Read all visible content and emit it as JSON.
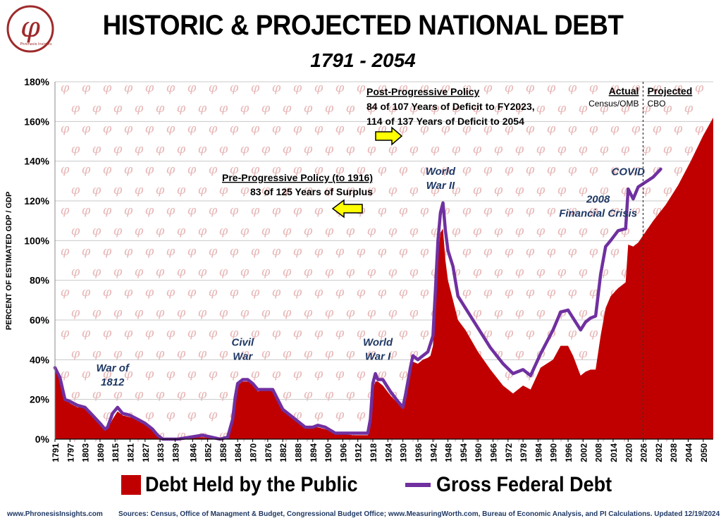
{
  "header": {
    "title": "HISTORIC & PROJECTED NATIONAL DEBT",
    "subtitle": "1791 - 2054",
    "logo_text": "Phronesis Insights",
    "logo_glyph": "φ"
  },
  "colors": {
    "public_debt": "#c00000",
    "gross_debt": "#7030a0",
    "annotation_text": "#1f3864",
    "arrow_fill": "#ffff00",
    "watermark": "#e8b8b8"
  },
  "footer": {
    "left": "www.PhronesisInsights.com",
    "right": "Sources: Census, Office of Managment & Budget, Congressional Budget Office; www.MeasuringWorth.com, Bureau of Economic Analysis, and PI Calculations. Updated 12/19/2024"
  },
  "chart_data": {
    "type": "area",
    "title": "HISTORIC & PROJECTED NATIONAL DEBT",
    "subtitle": "1791 - 2054",
    "ylabel": "PERCENT OF ESTIMATED GDP / GDP",
    "xlabel": "",
    "xlim": [
      1791,
      2054
    ],
    "ylim": [
      0,
      180
    ],
    "yticks": [
      "0%",
      "20%",
      "40%",
      "60%",
      "80%",
      "100%",
      "120%",
      "140%",
      "160%",
      "180%"
    ],
    "xticks": [
      "1791",
      "1797",
      "1803",
      "1809",
      "1815",
      "1821",
      "1827",
      "1833",
      "1839",
      "1846",
      "1852",
      "1858",
      "1864",
      "1870",
      "1876",
      "1882",
      "1888",
      "1894",
      "1900",
      "1906",
      "1912",
      "1918",
      "1924",
      "1930",
      "1936",
      "1942",
      "1948",
      "1954",
      "1960",
      "1966",
      "1972",
      "1978",
      "1984",
      "1990",
      "1996",
      "2002",
      "2008",
      "2014",
      "2020",
      "2026",
      "2032",
      "2038",
      "2044",
      "2050"
    ],
    "grid": true,
    "legend_position": "bottom",
    "series": [
      {
        "name": "Debt Held by the Public",
        "style": "area",
        "points": [
          [
            1791,
            35
          ],
          [
            1793,
            30
          ],
          [
            1795,
            21
          ],
          [
            1797,
            18
          ],
          [
            1800,
            16
          ],
          [
            1803,
            16
          ],
          [
            1806,
            12
          ],
          [
            1809,
            8
          ],
          [
            1811,
            5
          ],
          [
            1812,
            5
          ],
          [
            1814,
            10
          ],
          [
            1816,
            14
          ],
          [
            1818,
            12
          ],
          [
            1821,
            11
          ],
          [
            1824,
            10
          ],
          [
            1827,
            8
          ],
          [
            1830,
            5
          ],
          [
            1832,
            2
          ],
          [
            1834,
            0
          ],
          [
            1836,
            0
          ],
          [
            1840,
            0
          ],
          [
            1845,
            1
          ],
          [
            1850,
            1
          ],
          [
            1857,
            0
          ],
          [
            1860,
            1
          ],
          [
            1862,
            10
          ],
          [
            1863,
            20
          ],
          [
            1864,
            27
          ],
          [
            1866,
            29
          ],
          [
            1868,
            29
          ],
          [
            1870,
            28
          ],
          [
            1872,
            24
          ],
          [
            1875,
            25
          ],
          [
            1878,
            24
          ],
          [
            1880,
            19
          ],
          [
            1882,
            14
          ],
          [
            1885,
            12
          ],
          [
            1888,
            9
          ],
          [
            1891,
            6
          ],
          [
            1894,
            6
          ],
          [
            1896,
            6
          ],
          [
            1899,
            5
          ],
          [
            1903,
            3
          ],
          [
            1910,
            2
          ],
          [
            1916,
            2
          ],
          [
            1917,
            8
          ],
          [
            1918,
            25
          ],
          [
            1919,
            29
          ],
          [
            1920,
            29
          ],
          [
            1922,
            27
          ],
          [
            1925,
            22
          ],
          [
            1928,
            18
          ],
          [
            1930,
            16
          ],
          [
            1931,
            20
          ],
          [
            1933,
            32
          ],
          [
            1934,
            39
          ],
          [
            1936,
            38
          ],
          [
            1938,
            40
          ],
          [
            1940,
            41
          ],
          [
            1941,
            42
          ],
          [
            1942,
            47
          ],
          [
            1943,
            70
          ],
          [
            1944,
            92
          ],
          [
            1945,
            104
          ],
          [
            1946,
            106
          ],
          [
            1947,
            90
          ],
          [
            1948,
            80
          ],
          [
            1950,
            70
          ],
          [
            1952,
            60
          ],
          [
            1955,
            55
          ],
          [
            1960,
            44
          ],
          [
            1965,
            35
          ],
          [
            1970,
            27
          ],
          [
            1974,
            23
          ],
          [
            1978,
            27
          ],
          [
            1981,
            25
          ],
          [
            1985,
            36
          ],
          [
            1990,
            40
          ],
          [
            1993,
            47
          ],
          [
            1996,
            47
          ],
          [
            1998,
            42
          ],
          [
            2001,
            32
          ],
          [
            2003,
            34
          ],
          [
            2005,
            35
          ],
          [
            2007,
            35
          ],
          [
            2009,
            52
          ],
          [
            2011,
            66
          ],
          [
            2013,
            72
          ],
          [
            2016,
            76
          ],
          [
            2019,
            79
          ],
          [
            2020,
            98
          ],
          [
            2022,
            97
          ],
          [
            2024,
            99
          ],
          [
            2030,
            110
          ],
          [
            2035,
            118
          ],
          [
            2040,
            128
          ],
          [
            2045,
            140
          ],
          [
            2050,
            153
          ],
          [
            2054,
            162
          ]
        ]
      },
      {
        "name": "Gross Federal Debt",
        "style": "line",
        "points": [
          [
            1791,
            36
          ],
          [
            1793,
            31
          ],
          [
            1795,
            20
          ],
          [
            1797,
            19
          ],
          [
            1800,
            17
          ],
          [
            1803,
            16
          ],
          [
            1806,
            12
          ],
          [
            1809,
            8
          ],
          [
            1811,
            5
          ],
          [
            1812,
            6
          ],
          [
            1814,
            13
          ],
          [
            1816,
            16
          ],
          [
            1818,
            13
          ],
          [
            1821,
            12
          ],
          [
            1824,
            10
          ],
          [
            1827,
            8
          ],
          [
            1830,
            5
          ],
          [
            1832,
            2
          ],
          [
            1834,
            0
          ],
          [
            1836,
            0
          ],
          [
            1840,
            0
          ],
          [
            1845,
            1
          ],
          [
            1850,
            2
          ],
          [
            1857,
            0
          ],
          [
            1860,
            1
          ],
          [
            1862,
            10
          ],
          [
            1863,
            21
          ],
          [
            1864,
            28
          ],
          [
            1866,
            30
          ],
          [
            1868,
            30
          ],
          [
            1870,
            28
          ],
          [
            1872,
            25
          ],
          [
            1875,
            25
          ],
          [
            1878,
            25
          ],
          [
            1880,
            20
          ],
          [
            1882,
            15
          ],
          [
            1885,
            12
          ],
          [
            1888,
            9
          ],
          [
            1891,
            6
          ],
          [
            1894,
            6
          ],
          [
            1896,
            7
          ],
          [
            1899,
            6
          ],
          [
            1903,
            3
          ],
          [
            1910,
            3
          ],
          [
            1916,
            3
          ],
          [
            1917,
            10
          ],
          [
            1918,
            28
          ],
          [
            1919,
            33
          ],
          [
            1920,
            30
          ],
          [
            1922,
            30
          ],
          [
            1925,
            24
          ],
          [
            1928,
            19
          ],
          [
            1930,
            16
          ],
          [
            1931,
            22
          ],
          [
            1933,
            36
          ],
          [
            1934,
            42
          ],
          [
            1936,
            40
          ],
          [
            1938,
            42
          ],
          [
            1940,
            44
          ],
          [
            1941,
            48
          ],
          [
            1942,
            52
          ],
          [
            1943,
            75
          ],
          [
            1944,
            100
          ],
          [
            1945,
            114
          ],
          [
            1946,
            119
          ],
          [
            1947,
            105
          ],
          [
            1948,
            95
          ],
          [
            1950,
            87
          ],
          [
            1952,
            72
          ],
          [
            1955,
            66
          ],
          [
            1960,
            56
          ],
          [
            1965,
            46
          ],
          [
            1970,
            38
          ],
          [
            1974,
            33
          ],
          [
            1978,
            35
          ],
          [
            1981,
            32
          ],
          [
            1985,
            43
          ],
          [
            1990,
            55
          ],
          [
            1993,
            64
          ],
          [
            1996,
            65
          ],
          [
            1998,
            61
          ],
          [
            2001,
            55
          ],
          [
            2003,
            59
          ],
          [
            2005,
            61
          ],
          [
            2007,
            62
          ],
          [
            2009,
            83
          ],
          [
            2011,
            97
          ],
          [
            2013,
            100
          ],
          [
            2016,
            105
          ],
          [
            2019,
            106
          ],
          [
            2020,
            126
          ],
          [
            2022,
            121
          ],
          [
            2024,
            127
          ],
          [
            2030,
            132
          ],
          [
            2033,
            136
          ]
        ]
      }
    ],
    "projection_divider_year": 2024,
    "annotations": [
      {
        "text": "War of 1812",
        "x": 1814,
        "y": 27
      },
      {
        "text": "Civil War",
        "x": 1866,
        "y": 40
      },
      {
        "text": "World War I",
        "x": 1920,
        "y": 40
      },
      {
        "text": "World War II",
        "x": 1945,
        "y": 126
      },
      {
        "text": "2008 Financial Crisis",
        "x": 2008,
        "y": 112
      },
      {
        "text": "COVID",
        "x": 2020,
        "y": 133
      }
    ],
    "policy_notes": {
      "post_title": "Post-Progressive Policy",
      "post_line1": "84 of 107 Years of Deficit to FY2023,",
      "post_line2": "114 of 137 Years of Deficit to 2054",
      "pre_title": "Pre-Progressive Policy (to 1916)",
      "pre_line1": "83 of 125 Years of Surplus"
    },
    "region_labels": {
      "actual_title": "Actual",
      "actual_source": "Census/OMB",
      "projected_title": "Projected",
      "projected_source": "CBO"
    }
  }
}
